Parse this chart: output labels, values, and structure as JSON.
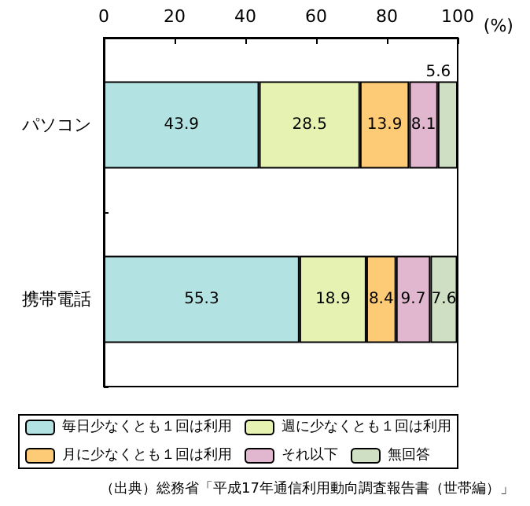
{
  "chart_data": {
    "type": "bar",
    "orientation": "horizontal",
    "stacked": true,
    "categories": [
      "パソコン",
      "携帯電話"
    ],
    "series": [
      {
        "name": "毎日少なくとも１回は利用",
        "color": "#b3e2e2",
        "values": [
          43.9,
          55.3
        ]
      },
      {
        "name": "週に少なくとも１回は利用",
        "color": "#e5f2b1",
        "values": [
          28.5,
          18.9
        ]
      },
      {
        "name": "月に少なくとも１回は利用",
        "color": "#fdca76",
        "values": [
          13.9,
          8.4
        ]
      },
      {
        "name": "それ以下",
        "color": "#e1b6cf",
        "values": [
          8.1,
          9.7
        ]
      },
      {
        "name": "無回答",
        "color": "#cfdfc3",
        "values": [
          5.6,
          7.6
        ]
      }
    ],
    "xlim": [
      0,
      100
    ],
    "xticks": [
      0,
      20,
      40,
      60,
      80,
      100
    ],
    "xlabel": "(%)",
    "data_labels": true,
    "legend": "bottom",
    "grid": false,
    "annotations": [
      "（出典）総務省「平成17年通信利用動向調査報告書（世帯編）」"
    ]
  }
}
